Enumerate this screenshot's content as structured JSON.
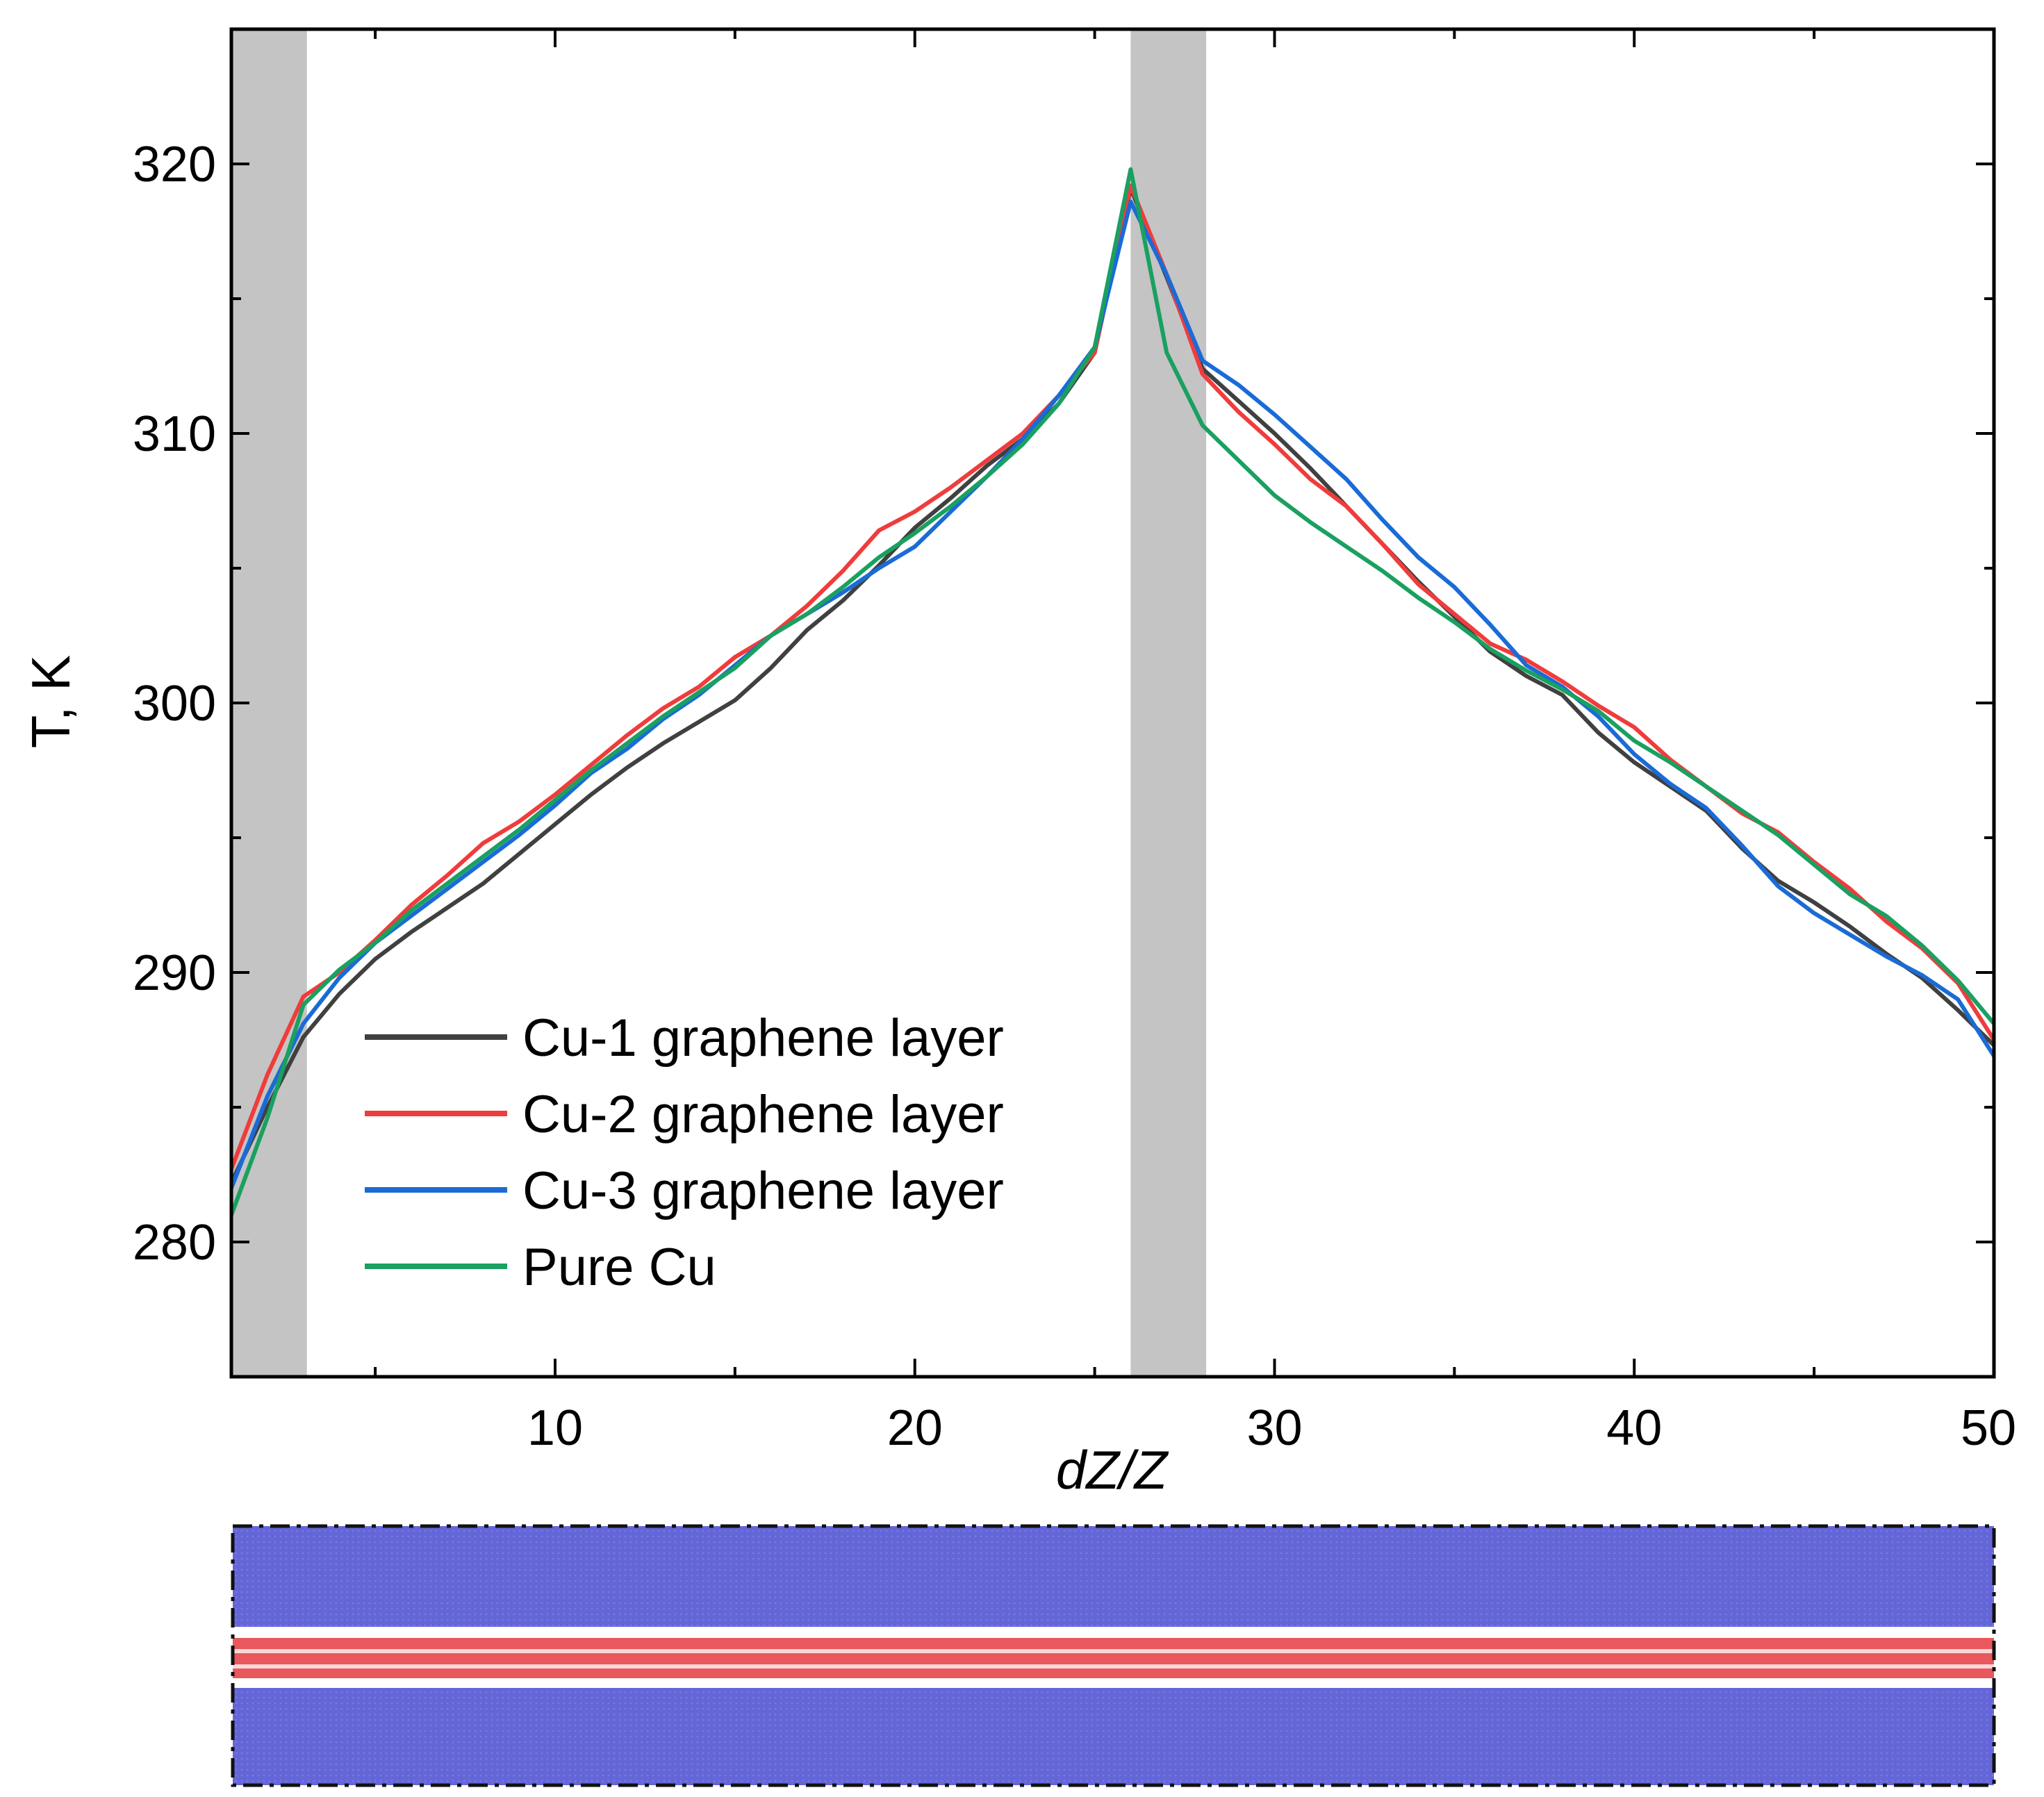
{
  "chart_data": {
    "type": "line",
    "title": "",
    "xlabel": "dZ/Z",
    "ylabel": "T, K",
    "xlim": [
      1,
      50
    ],
    "ylim": [
      275,
      325
    ],
    "xticks": [
      10,
      20,
      30,
      40,
      50
    ],
    "yticks": [
      280,
      290,
      300,
      310,
      320
    ],
    "shaded_regions": [
      [
        1,
        3.1
      ],
      [
        26,
        28.1
      ]
    ],
    "legend_position": "bottom-left",
    "series": [
      {
        "name": "Cu-1 graphene layer",
        "color": "#404040",
        "x": [
          1,
          2,
          3,
          4,
          5,
          6,
          7,
          8,
          9,
          10,
          11,
          12,
          13,
          14,
          15,
          16,
          17,
          18,
          19,
          20,
          21,
          22,
          23,
          24,
          25,
          26,
          27,
          28,
          29,
          30,
          31,
          32,
          33,
          34,
          35,
          36,
          37,
          38,
          39,
          40,
          41,
          42,
          43,
          44,
          45,
          46,
          47,
          48,
          49,
          50
        ],
        "values": [
          282.2,
          285.0,
          287.6,
          289.2,
          290.5,
          291.5,
          292.4,
          293.3,
          294.4,
          295.5,
          296.6,
          297.6,
          298.5,
          299.3,
          300.1,
          301.3,
          302.7,
          303.8,
          305.1,
          306.5,
          307.6,
          308.8,
          309.8,
          311.1,
          313.0,
          319.1,
          315.8,
          312.4,
          311.2,
          310.0,
          308.7,
          307.3,
          305.9,
          304.5,
          303.2,
          301.9,
          301.0,
          300.3,
          298.9,
          297.8,
          296.9,
          296.0,
          294.6,
          293.4,
          292.6,
          291.7,
          290.7,
          289.8,
          288.6,
          287.3
        ]
      },
      {
        "name": "Cu-2 graphene layer",
        "color": "#f03c3c",
        "x": [
          1,
          2,
          3,
          4,
          5,
          6,
          7,
          8,
          9,
          10,
          11,
          12,
          13,
          14,
          15,
          16,
          17,
          18,
          19,
          20,
          21,
          22,
          23,
          24,
          25,
          26,
          27,
          28,
          29,
          30,
          31,
          32,
          33,
          34,
          35,
          36,
          37,
          38,
          39,
          40,
          41,
          42,
          43,
          44,
          45,
          46,
          47,
          48,
          49,
          50
        ],
        "values": [
          282.7,
          286.2,
          289.1,
          290.0,
          291.2,
          292.5,
          293.6,
          294.8,
          295.6,
          296.6,
          297.7,
          298.8,
          299.8,
          300.6,
          301.7,
          302.5,
          303.6,
          304.9,
          306.4,
          307.1,
          308.0,
          309.0,
          310.0,
          311.4,
          313.0,
          319.2,
          315.9,
          312.2,
          310.8,
          309.6,
          308.3,
          307.3,
          305.9,
          304.4,
          303.3,
          302.2,
          301.6,
          300.8,
          299.9,
          299.1,
          297.9,
          296.9,
          295.9,
          295.2,
          294.1,
          293.1,
          291.9,
          290.9,
          289.6,
          287.5
        ]
      },
      {
        "name": "Cu-3 graphene layer",
        "color": "#1a6bd6",
        "x": [
          1,
          2,
          3,
          4,
          5,
          6,
          7,
          8,
          9,
          10,
          11,
          12,
          13,
          14,
          15,
          16,
          17,
          18,
          19,
          20,
          21,
          22,
          23,
          24,
          25,
          26,
          27,
          28,
          29,
          30,
          31,
          32,
          33,
          34,
          35,
          36,
          37,
          38,
          39,
          40,
          41,
          42,
          43,
          44,
          45,
          46,
          47,
          48,
          49,
          50
        ],
        "values": [
          282.0,
          285.4,
          288.1,
          289.8,
          291.1,
          292.1,
          293.1,
          294.1,
          295.1,
          296.2,
          297.4,
          298.3,
          299.4,
          300.3,
          301.4,
          302.5,
          303.3,
          304.1,
          305.0,
          305.8,
          307.1,
          308.4,
          309.8,
          311.4,
          313.2,
          318.6,
          315.9,
          312.7,
          311.8,
          310.7,
          309.5,
          308.3,
          306.8,
          305.4,
          304.3,
          302.9,
          301.4,
          300.6,
          299.5,
          298.1,
          297.0,
          296.1,
          294.7,
          293.2,
          292.2,
          291.4,
          290.6,
          289.9,
          289.0,
          286.9
        ]
      },
      {
        "name": "Pure Cu",
        "color": "#1aa060",
        "x": [
          1,
          2,
          3,
          4,
          5,
          6,
          7,
          8,
          9,
          10,
          11,
          12,
          13,
          14,
          15,
          16,
          17,
          18,
          19,
          20,
          21,
          22,
          23,
          24,
          25,
          26,
          27,
          28,
          29,
          30,
          31,
          32,
          33,
          34,
          35,
          36,
          37,
          38,
          39,
          40,
          41,
          42,
          43,
          44,
          45,
          46,
          47,
          48,
          49,
          50
        ],
        "values": [
          281.0,
          284.6,
          288.8,
          290.1,
          291.1,
          292.3,
          293.3,
          294.3,
          295.3,
          296.4,
          297.5,
          298.5,
          299.5,
          300.4,
          301.3,
          302.5,
          303.3,
          304.3,
          305.4,
          306.3,
          307.3,
          308.4,
          309.6,
          311.1,
          313.2,
          319.8,
          313.0,
          310.3,
          309.0,
          307.7,
          306.7,
          305.8,
          304.9,
          303.9,
          303.0,
          302.0,
          301.2,
          300.5,
          299.7,
          298.6,
          297.8,
          296.9,
          296.0,
          295.1,
          294.0,
          292.9,
          292.1,
          291.0,
          289.7,
          288.1
        ]
      }
    ]
  },
  "inset": {
    "label": "simulation cell snapshot",
    "top_color": "#6466d8",
    "band_color": "#e8585c",
    "bottom_color": "#6466d8"
  }
}
